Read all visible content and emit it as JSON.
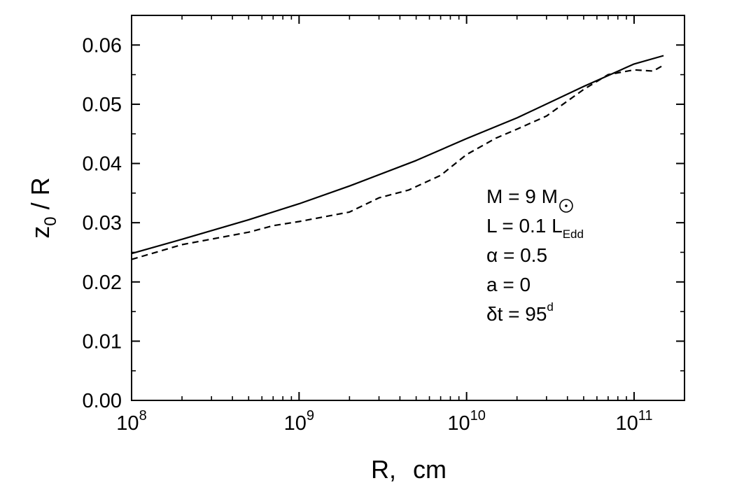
{
  "chart_data": {
    "type": "line",
    "title": "",
    "xlabel_main": "R,",
    "xlabel_unit": "cm",
    "ylabel_base": "z",
    "ylabel_sub": "0",
    "ylabel_rest": " / R",
    "xscale": "log",
    "xlim": [
      100000000.0,
      200000000000.0
    ],
    "ylim": [
      0.0,
      0.065
    ],
    "x_ticks": [
      {
        "base": "10",
        "exp": "8",
        "value": 100000000.0
      },
      {
        "base": "10",
        "exp": "9",
        "value": 1000000000.0
      },
      {
        "base": "10",
        "exp": "10",
        "value": 10000000000.0
      },
      {
        "base": "10",
        "exp": "11",
        "value": 100000000000.0
      }
    ],
    "y_ticks": [
      {
        "label": "0.00",
        "value": 0.0
      },
      {
        "label": "0.01",
        "value": 0.01
      },
      {
        "label": "0.02",
        "value": 0.02
      },
      {
        "label": "0.03",
        "value": 0.03
      },
      {
        "label": "0.04",
        "value": 0.04
      },
      {
        "label": "0.05",
        "value": 0.05
      },
      {
        "label": "0.06",
        "value": 0.06
      }
    ],
    "series": [
      {
        "style": "solid",
        "color": "#000000",
        "points": [
          [
            100000000.0,
            0.0248
          ],
          [
            200000000.0,
            0.0272
          ],
          [
            500000000.0,
            0.0305
          ],
          [
            1000000000.0,
            0.0332
          ],
          [
            2000000000.0,
            0.0362
          ],
          [
            5000000000.0,
            0.0405
          ],
          [
            10000000000.0,
            0.0442
          ],
          [
            20000000000.0,
            0.0477
          ],
          [
            50000000000.0,
            0.053
          ],
          [
            100000000000.0,
            0.0568
          ],
          [
            150000000000.0,
            0.0582
          ]
        ]
      },
      {
        "style": "dashed",
        "color": "#000000",
        "points": [
          [
            100000000.0,
            0.0238
          ],
          [
            200000000.0,
            0.0263
          ],
          [
            500000000.0,
            0.0284
          ],
          [
            700000000.0,
            0.0295
          ],
          [
            1000000000.0,
            0.0302
          ],
          [
            2000000000.0,
            0.0318
          ],
          [
            3000000000.0,
            0.0342
          ],
          [
            4500000000.0,
            0.0355
          ],
          [
            7000000000.0,
            0.038
          ],
          [
            10000000000.0,
            0.0415
          ],
          [
            15000000000.0,
            0.0443
          ],
          [
            20000000000.0,
            0.0458
          ],
          [
            30000000000.0,
            0.048
          ],
          [
            50000000000.0,
            0.0525
          ],
          [
            70000000000.0,
            0.055
          ],
          [
            100000000000.0,
            0.0558
          ],
          [
            130000000000.0,
            0.0556
          ],
          [
            150000000000.0,
            0.0566
          ]
        ]
      }
    ],
    "annotations": [
      {
        "main": "M = 9 M",
        "sub": "",
        "sup": "",
        "symbol": "sun"
      },
      {
        "main": "L = 0.1 L",
        "sub": "Edd",
        "sup": "",
        "symbol": ""
      },
      {
        "main": "α = 0.5",
        "sub": "",
        "sup": "",
        "symbol": ""
      },
      {
        "main": "a = 0",
        "sub": "",
        "sup": "",
        "symbol": ""
      },
      {
        "main": "δt = 95",
        "sub": "",
        "sup": "d",
        "symbol": ""
      }
    ],
    "grid": false,
    "legend": "none"
  }
}
